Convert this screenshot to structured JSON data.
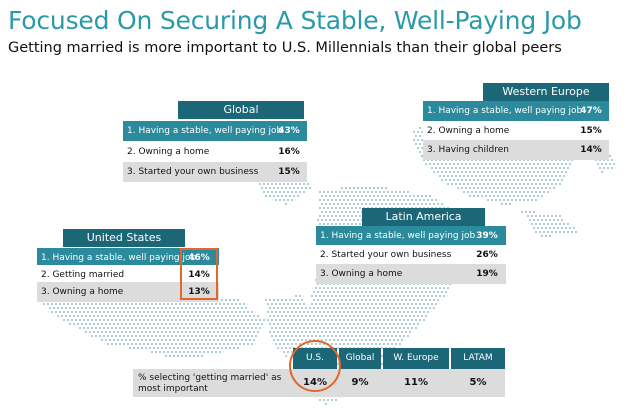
{
  "header": {
    "title": "Focused On Securing A Stable, Well-Paying Job",
    "subtitle": "Getting married is more important to U.S. Millennials than their global peers"
  },
  "colors": {
    "teal_title": "#2a9aa9",
    "header_dark": "#1b6677",
    "row_highlight": "#2b8a9b",
    "row_gray": "#dcdcdc",
    "accent_orange": "#e2672c",
    "map_dots": "#a9c8cf"
  },
  "regions": {
    "global": {
      "title": "Global",
      "rows": [
        {
          "label": "1. Having a stable, well paying job",
          "value": "43%"
        },
        {
          "label": "2. Owning a home",
          "value": "16%"
        },
        {
          "label": "3. Started your own business",
          "value": "15%"
        }
      ]
    },
    "western_europe": {
      "title": "Western Europe",
      "rows": [
        {
          "label": "1. Having a stable, well paying job",
          "value": "47%"
        },
        {
          "label": "2. Owning a home",
          "value": "15%"
        },
        {
          "label": "3. Having children",
          "value": "14%"
        }
      ]
    },
    "latin_america": {
      "title": "Latin America",
      "rows": [
        {
          "label": "1. Having a stable, well paying job",
          "value": "39%"
        },
        {
          "label": "2. Started your own business",
          "value": "26%"
        },
        {
          "label": "3. Owning a home",
          "value": "19%"
        }
      ]
    },
    "united_states": {
      "title": "United States",
      "rows": [
        {
          "label": "1. Having a stable, well paying job",
          "value": "46%"
        },
        {
          "label": "2. Getting married",
          "value": "14%"
        },
        {
          "label": "3. Owning a home",
          "value": "13%"
        }
      ]
    }
  },
  "comparison": {
    "row_label": "% selecting 'getting married' as most important",
    "columns": [
      {
        "header": "U.S.",
        "value": "14%"
      },
      {
        "header": "Global",
        "value": "9%"
      },
      {
        "header": "W. Europe",
        "value": "11%"
      },
      {
        "header": "LATAM",
        "value": "5%"
      }
    ]
  }
}
